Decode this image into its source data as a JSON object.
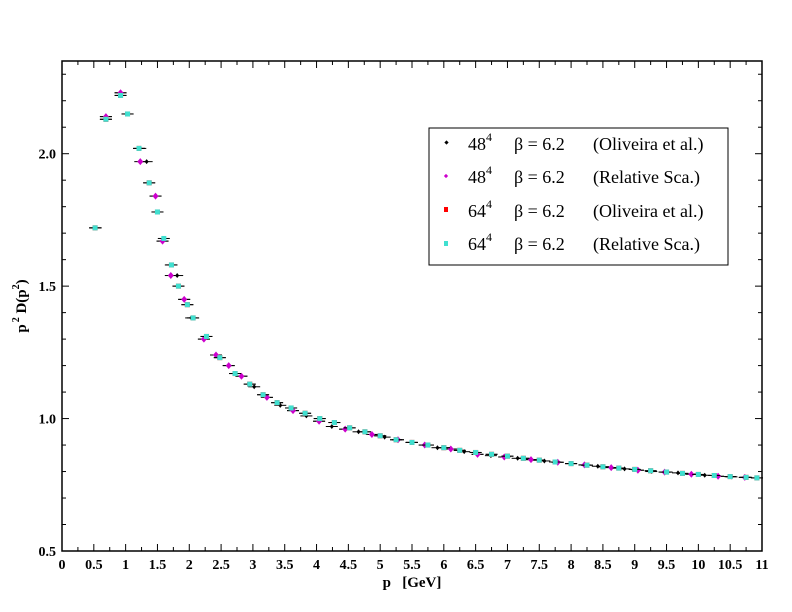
{
  "chart_data": {
    "type": "scatter",
    "title": "",
    "xlabel": "p   [GeV]",
    "ylabel": {
      "base": "p",
      "sup1": "2",
      "mid": " D(p",
      "sup2": "2",
      "end": ")"
    },
    "xlim": [
      0,
      11
    ],
    "ylim": [
      0.5,
      2.35
    ],
    "xticks": [
      0,
      0.5,
      1,
      1.5,
      2,
      2.5,
      3,
      3.5,
      4,
      4.5,
      5,
      5.5,
      6,
      6.5,
      7,
      7.5,
      8,
      8.5,
      9,
      9.5,
      10,
      10.5,
      11
    ],
    "xtick_labels": [
      "0",
      "0.5",
      "1",
      "1.5",
      "2",
      "2.5",
      "3",
      "3.5",
      "4",
      "4.5",
      "5",
      "5.5",
      "6",
      "6.5",
      "7",
      "7.5",
      "8",
      "8.5",
      "9",
      "9.5",
      "10",
      "10.5",
      "11"
    ],
    "yticks": [
      0.5,
      1.0,
      1.5,
      2.0
    ],
    "ytick_labels": [
      "0.5",
      "1.0",
      "1.5",
      "2.0"
    ],
    "grid": false,
    "legend_position": "top-right",
    "series": [
      {
        "name": {
          "lat": "48",
          "sup": "4",
          "beta": "β = 6.2",
          "source": "(Oliveira et al.)"
        },
        "color": "#000000",
        "marker": "diamond-small",
        "x": [
          0.53,
          0.69,
          0.92,
          1.03,
          1.23,
          1.33,
          1.47,
          1.58,
          1.71,
          1.81,
          1.92,
          2.03,
          2.23,
          2.42,
          2.62,
          2.82,
          3.02,
          3.22,
          3.43,
          3.63,
          3.84,
          4.04,
          4.24,
          4.45,
          4.66,
          4.87,
          5.07,
          5.28,
          5.49,
          5.7,
          5.9,
          6.11,
          6.32,
          6.53,
          6.74,
          6.95,
          7.16,
          7.37,
          7.58,
          7.79,
          8.0,
          8.21,
          8.42,
          8.63,
          8.84,
          9.05,
          9.26,
          9.47,
          9.68,
          9.89,
          10.1,
          10.31,
          10.52,
          10.73
        ],
        "y": [
          1.72,
          2.14,
          2.23,
          2.15,
          2.02,
          1.97,
          1.84,
          1.67,
          1.58,
          1.54,
          1.45,
          1.38,
          1.3,
          1.24,
          1.2,
          1.16,
          1.12,
          1.08,
          1.05,
          1.03,
          1.01,
          0.99,
          0.97,
          0.96,
          0.95,
          0.94,
          0.93,
          0.92,
          0.91,
          0.9,
          0.89,
          0.885,
          0.875,
          0.865,
          0.86,
          0.855,
          0.85,
          0.845,
          0.84,
          0.835,
          0.83,
          0.825,
          0.82,
          0.815,
          0.81,
          0.805,
          0.8,
          0.798,
          0.795,
          0.79,
          0.786,
          0.782,
          0.78,
          0.778
        ]
      },
      {
        "name": {
          "lat": "48",
          "sup": "4",
          "beta": "β = 6.2",
          "source": "(Relative Sca.)"
        },
        "color": "#cc00cc",
        "marker": "diamond",
        "x": [
          0.69,
          0.92,
          1.23,
          1.47,
          1.58,
          1.71,
          1.92,
          2.23,
          2.42,
          2.62,
          2.82,
          3.22,
          3.63,
          4.04,
          4.45,
          4.87,
          5.28,
          5.7,
          6.11,
          6.53,
          6.95,
          7.37,
          7.79,
          8.21,
          8.63,
          9.05,
          9.47,
          9.89,
          10.31,
          10.73
        ],
        "y": [
          2.14,
          2.23,
          1.97,
          1.84,
          1.67,
          1.54,
          1.45,
          1.3,
          1.24,
          1.2,
          1.16,
          1.08,
          1.03,
          0.99,
          0.96,
          0.94,
          0.92,
          0.9,
          0.885,
          0.865,
          0.855,
          0.845,
          0.835,
          0.825,
          0.815,
          0.805,
          0.798,
          0.79,
          0.782,
          0.778
        ]
      },
      {
        "name": {
          "lat": "64",
          "sup": "4",
          "beta": "β = 6.2",
          "source": "(Oliveira et al.)"
        },
        "color": "#ff0000",
        "marker": "square",
        "x": [
          0.52,
          0.69,
          0.92,
          1.03,
          1.21,
          1.37,
          1.5,
          1.72,
          1.83,
          1.97,
          2.06,
          2.27,
          2.48,
          2.72,
          2.95,
          3.16,
          3.38,
          3.6,
          3.82,
          4.05,
          4.28,
          4.52,
          4.76,
          5.0,
          5.25,
          5.5,
          5.75,
          6.0,
          6.25,
          6.5,
          6.75,
          7.0,
          7.25,
          7.5,
          7.75,
          8.0,
          8.25,
          8.5,
          8.75,
          9.0,
          9.25,
          9.5,
          9.75,
          10.0,
          10.25,
          10.5,
          10.75,
          10.92
        ],
        "y": [
          1.72,
          2.13,
          2.22,
          2.15,
          2.02,
          1.89,
          1.78,
          1.58,
          1.5,
          1.43,
          1.38,
          1.31,
          1.23,
          1.17,
          1.13,
          1.09,
          1.06,
          1.04,
          1.02,
          1.0,
          0.985,
          0.965,
          0.95,
          0.935,
          0.92,
          0.91,
          0.9,
          0.89,
          0.88,
          0.872,
          0.865,
          0.858,
          0.85,
          0.843,
          0.836,
          0.83,
          0.824,
          0.818,
          0.813,
          0.808,
          0.803,
          0.798,
          0.793,
          0.789,
          0.785,
          0.781,
          0.778,
          0.776
        ]
      },
      {
        "name": {
          "lat": "64",
          "sup": "4",
          "beta": "β = 6.2",
          "source": "(Relative Sca.)"
        },
        "color": "#40e0d0",
        "marker": "square",
        "x": [
          0.52,
          0.69,
          0.92,
          1.03,
          1.21,
          1.37,
          1.5,
          1.6,
          1.72,
          1.83,
          1.97,
          2.06,
          2.27,
          2.48,
          2.72,
          2.95,
          3.16,
          3.38,
          3.6,
          3.82,
          4.05,
          4.28,
          4.52,
          4.76,
          5.0,
          5.25,
          5.5,
          5.75,
          6.0,
          6.25,
          6.5,
          6.75,
          7.0,
          7.25,
          7.5,
          7.75,
          8.0,
          8.25,
          8.5,
          8.75,
          9.0,
          9.25,
          9.5,
          9.75,
          10.0,
          10.25,
          10.5,
          10.75,
          10.92
        ],
        "y": [
          1.72,
          2.13,
          2.22,
          2.15,
          2.02,
          1.89,
          1.78,
          1.68,
          1.58,
          1.5,
          1.43,
          1.38,
          1.31,
          1.23,
          1.17,
          1.13,
          1.09,
          1.06,
          1.04,
          1.02,
          1.0,
          0.985,
          0.965,
          0.95,
          0.935,
          0.92,
          0.91,
          0.9,
          0.89,
          0.88,
          0.872,
          0.865,
          0.858,
          0.85,
          0.843,
          0.836,
          0.83,
          0.824,
          0.818,
          0.813,
          0.808,
          0.803,
          0.798,
          0.793,
          0.789,
          0.785,
          0.781,
          0.778,
          0.776
        ]
      }
    ]
  }
}
